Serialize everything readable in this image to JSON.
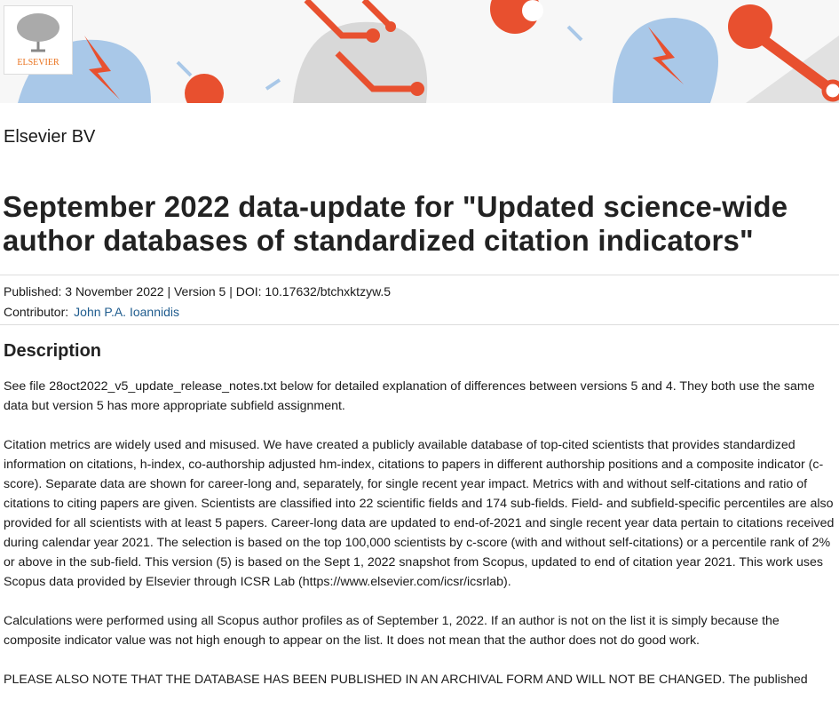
{
  "header": {
    "logo_text": "ELSEVIER"
  },
  "publisher": "Elsevier BV",
  "title": "September 2022 data-update for \"Updated science-wide author databases of standardized citation indicators\"",
  "meta": {
    "published": "Published: 3 November 2022 | Version 5 | DOI: 10.17632/btchxktzyw.5",
    "contributor_label": "Contributor:",
    "contributor": "John P.A. Ioannidis"
  },
  "description": {
    "heading": "Description",
    "paragraphs": [
      "See file 28oct2022_v5_update_release_notes.txt below for detailed explanation of differences between versions 5 and 4. They both use the same data but version 5 has more appropriate subfield assignment.",
      "Citation metrics are widely used and misused. We have created a publicly available database of top-cited scientists that provides standardized information on citations, h-index, co-authorship adjusted hm-index, citations to papers in different authorship positions and a composite indicator (c-score). Separate data are shown for career-long and, separately, for single recent year impact. Metrics with and without self-citations and ratio of citations to citing papers are given. Scientists are classified into 22 scientific fields and 174 sub-fields. Field- and subfield-specific percentiles are also provided for all scientists with at least 5 papers. Career-long data are updated to end-of-2021 and single recent year data pertain to citations received during calendar year 2021. The selection is based on the top 100,000 scientists by c-score (with and without self-citations) or a percentile rank of 2% or above in the sub-field. This version (5) is based on the Sept 1, 2022 snapshot from Scopus, updated to end of citation year 2021. This work uses Scopus data provided by Elsevier through ICSR Lab (https://www.elsevier.com/icsr/icsrlab).",
      "Calculations were performed using all Scopus author profiles as of September 1, 2022. If an author is not on the list it is simply because the composite indicator value was not high enough to appear on the list. It does not mean that the author does not do good work.",
      "PLEASE ALSO NOTE THAT THE DATABASE HAS BEEN PUBLISHED IN AN ARCHIVAL FORM AND WILL NOT BE CHANGED. The published"
    ]
  }
}
